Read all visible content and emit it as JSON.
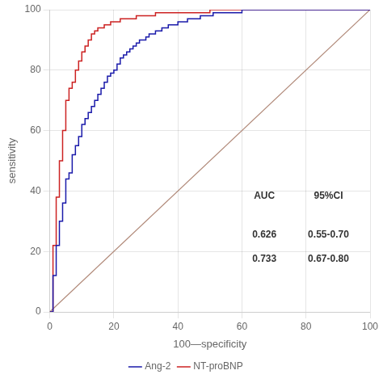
{
  "chart_data": {
    "type": "line",
    "line_style": "step",
    "xlabel": "100—specificity",
    "ylabel": "sensitivity",
    "xlim": [
      0,
      100
    ],
    "ylim": [
      0,
      100
    ],
    "xticks": [
      0,
      20,
      40,
      60,
      80,
      100
    ],
    "yticks": [
      0,
      20,
      40,
      60,
      80,
      100
    ],
    "grid": true,
    "legend": "bottom",
    "diagonal": {
      "x": [
        0,
        100
      ],
      "values": [
        0,
        100
      ],
      "color": "#b08878"
    },
    "series": [
      {
        "name": "Ang-2",
        "color": "#1a1aaa",
        "x": [
          0,
          1,
          2,
          3,
          4,
          5,
          5,
          6,
          7,
          8,
          9,
          10,
          11,
          12,
          13,
          14,
          15,
          16,
          17,
          18,
          19,
          20,
          21,
          22,
          23,
          24,
          25,
          26,
          27,
          28,
          29,
          30,
          31,
          32,
          33,
          34,
          35,
          36,
          37,
          38,
          39,
          40,
          41,
          42,
          43,
          44,
          45,
          46,
          47,
          48,
          49,
          50,
          51,
          52,
          53,
          54,
          55,
          56,
          57,
          58,
          59,
          60,
          65,
          70,
          75,
          80,
          85,
          90,
          95,
          100
        ],
        "values": [
          0,
          12,
          22,
          30,
          36,
          38,
          44,
          46,
          52,
          55,
          58,
          62,
          64,
          66,
          68,
          70,
          72,
          74,
          76,
          78,
          79,
          80,
          82,
          84,
          85,
          86,
          87,
          88,
          89,
          90,
          90,
          91,
          92,
          92,
          93,
          93,
          94,
          94,
          95,
          95,
          95,
          96,
          96,
          96,
          97,
          97,
          97,
          97,
          98,
          98,
          98,
          98,
          99,
          99,
          99,
          99,
          99,
          99,
          99,
          99,
          99,
          100,
          100,
          100,
          100,
          100,
          100,
          100,
          100,
          100
        ]
      },
      {
        "name": "NT-proBNP",
        "color": "#cc2222",
        "x": [
          0,
          1,
          2,
          3,
          4,
          5,
          5,
          6,
          7,
          8,
          9,
          10,
          11,
          12,
          13,
          14,
          15,
          16,
          17,
          18,
          19,
          20,
          21,
          22,
          23,
          24,
          25,
          26,
          27,
          28,
          29,
          30,
          31,
          32,
          33,
          34,
          35,
          36,
          37,
          38,
          39,
          40,
          41,
          42,
          43,
          44,
          45,
          46,
          47,
          48,
          49,
          50,
          55,
          60,
          65,
          70,
          75,
          80,
          85,
          90,
          95,
          100
        ],
        "values": [
          0,
          22,
          38,
          50,
          60,
          62,
          70,
          74,
          76,
          80,
          83,
          86,
          88,
          90,
          92,
          93,
          94,
          94,
          95,
          95,
          96,
          96,
          96,
          97,
          97,
          97,
          97,
          97,
          98,
          98,
          98,
          98,
          98,
          98,
          99,
          99,
          99,
          99,
          99,
          99,
          99,
          99,
          99,
          99,
          99,
          99,
          99,
          99,
          99,
          99,
          99,
          100,
          100,
          100,
          100,
          100,
          100,
          100,
          100,
          100,
          100,
          100
        ]
      }
    ],
    "auc_table": {
      "header": [
        "AUC",
        "95%CI"
      ],
      "rows": [
        [
          "0.626",
          "0.55-0.70"
        ],
        [
          "0.733",
          "0.67-0.80"
        ]
      ]
    }
  }
}
